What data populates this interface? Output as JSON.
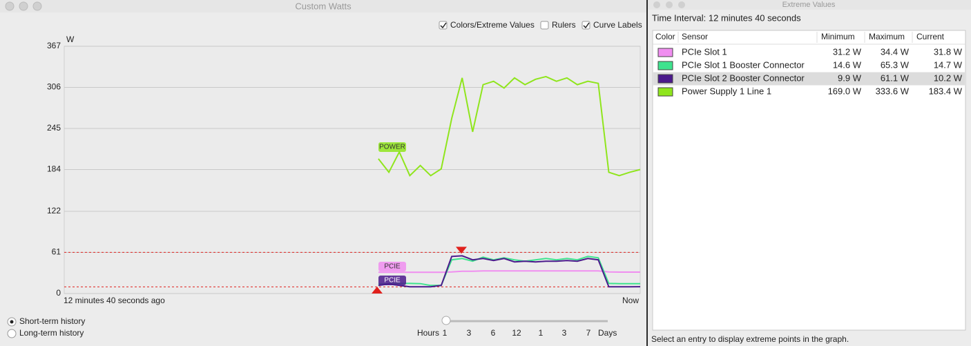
{
  "left_window": {
    "title": "Custom Watts",
    "checkboxes": [
      {
        "label": "Colors/Extreme Values",
        "checked": true
      },
      {
        "label": "Rulers",
        "checked": false
      },
      {
        "label": "Curve Labels",
        "checked": true
      }
    ],
    "radios": [
      {
        "label": "Short-term history",
        "selected": true
      },
      {
        "label": "Long-term history",
        "selected": false
      }
    ],
    "slider": {
      "start": "Hours",
      "end": "Days",
      "ticks": [
        "1",
        "3",
        "6",
        "12",
        "1",
        "3",
        "7"
      ]
    }
  },
  "chart_data": {
    "type": "line",
    "y_unit": "W",
    "ylim": [
      0,
      367
    ],
    "yticks": [
      0,
      61,
      122,
      184,
      245,
      306,
      367
    ],
    "grid": true,
    "x_start_label": "12 minutes 40 seconds ago",
    "x_end_label": "Now",
    "extremes": {
      "min": 9.9,
      "max": 61.1,
      "color": "#e0201c"
    },
    "series": [
      {
        "label": "POWER",
        "color": "#8fe51c",
        "values": [
          null,
          null,
          null,
          null,
          null,
          null,
          null,
          null,
          null,
          null,
          null,
          null,
          null,
          null,
          null,
          null,
          null,
          null,
          null,
          null,
          null,
          null,
          null,
          null,
          null,
          null,
          null,
          null,
          null,
          null,
          200,
          180,
          210,
          175,
          190,
          175,
          185,
          260,
          320,
          240,
          310,
          315,
          305,
          320,
          310,
          318,
          322,
          315,
          320,
          310,
          315,
          312,
          180,
          175,
          180,
          184
        ]
      },
      {
        "label": "PCIE",
        "color": "#f08ef0",
        "values": [
          null,
          null,
          null,
          null,
          null,
          null,
          null,
          null,
          null,
          null,
          null,
          null,
          null,
          null,
          null,
          null,
          null,
          null,
          null,
          null,
          null,
          null,
          null,
          null,
          null,
          null,
          null,
          null,
          null,
          null,
          31.5,
          31.5,
          31.5,
          31.5,
          31.5,
          31.5,
          31.5,
          32,
          33,
          33,
          33.5,
          33.5,
          33.5,
          33.5,
          33.5,
          33.5,
          33.5,
          33.5,
          33.5,
          33.5,
          33.5,
          33.5,
          32,
          31.8,
          31.8,
          31.8
        ]
      },
      {
        "label": null,
        "color": "#3ee38e",
        "values": [
          null,
          null,
          null,
          null,
          null,
          null,
          null,
          null,
          null,
          null,
          null,
          null,
          null,
          null,
          null,
          null,
          null,
          null,
          null,
          null,
          null,
          null,
          null,
          null,
          null,
          null,
          null,
          null,
          null,
          null,
          14,
          14.7,
          15,
          15,
          14.7,
          12,
          12,
          50,
          52,
          48,
          54,
          50,
          53,
          50,
          48,
          50,
          52,
          50,
          52,
          50,
          55,
          53,
          15,
          14.7,
          14.7,
          14.7
        ]
      },
      {
        "label": "PCIE",
        "color": "#4b1a8c",
        "values": [
          null,
          null,
          null,
          null,
          null,
          null,
          null,
          null,
          null,
          null,
          null,
          null,
          null,
          null,
          null,
          null,
          null,
          null,
          null,
          null,
          null,
          null,
          null,
          null,
          null,
          null,
          null,
          null,
          null,
          null,
          12,
          14,
          12,
          10,
          10,
          10,
          12,
          55,
          56,
          50,
          52,
          49,
          52,
          47,
          48,
          47,
          48,
          48,
          49,
          48,
          52,
          50,
          10,
          10,
          10,
          10.2
        ]
      }
    ]
  },
  "right_window": {
    "title": "Extreme Values",
    "interval": "Time Interval: 12 minutes 40 seconds",
    "table": {
      "headers": [
        "Color",
        "Sensor",
        "Minimum",
        "Maximum",
        "Current"
      ],
      "selected_row": 2,
      "rows": [
        {
          "color": "#f08ef0",
          "sensor": "PCIe Slot 1",
          "min": "31.2 W",
          "max": "34.4 W",
          "current": "31.8 W"
        },
        {
          "color": "#3ee38e",
          "sensor": "PCIe Slot 1 Booster Connector",
          "min": "14.6 W",
          "max": "65.3 W",
          "current": "14.7 W"
        },
        {
          "color": "#4b1a8c",
          "sensor": "PCIe Slot 2 Booster Connector",
          "min": "9.9 W",
          "max": "61.1 W",
          "current": "10.2 W"
        },
        {
          "color": "#8fe51c",
          "sensor": "Power Supply 1 Line 1",
          "min": "169.0 W",
          "max": "333.6 W",
          "current": "183.4 W"
        }
      ]
    },
    "footer": "Select an entry to display extreme points in the graph."
  }
}
